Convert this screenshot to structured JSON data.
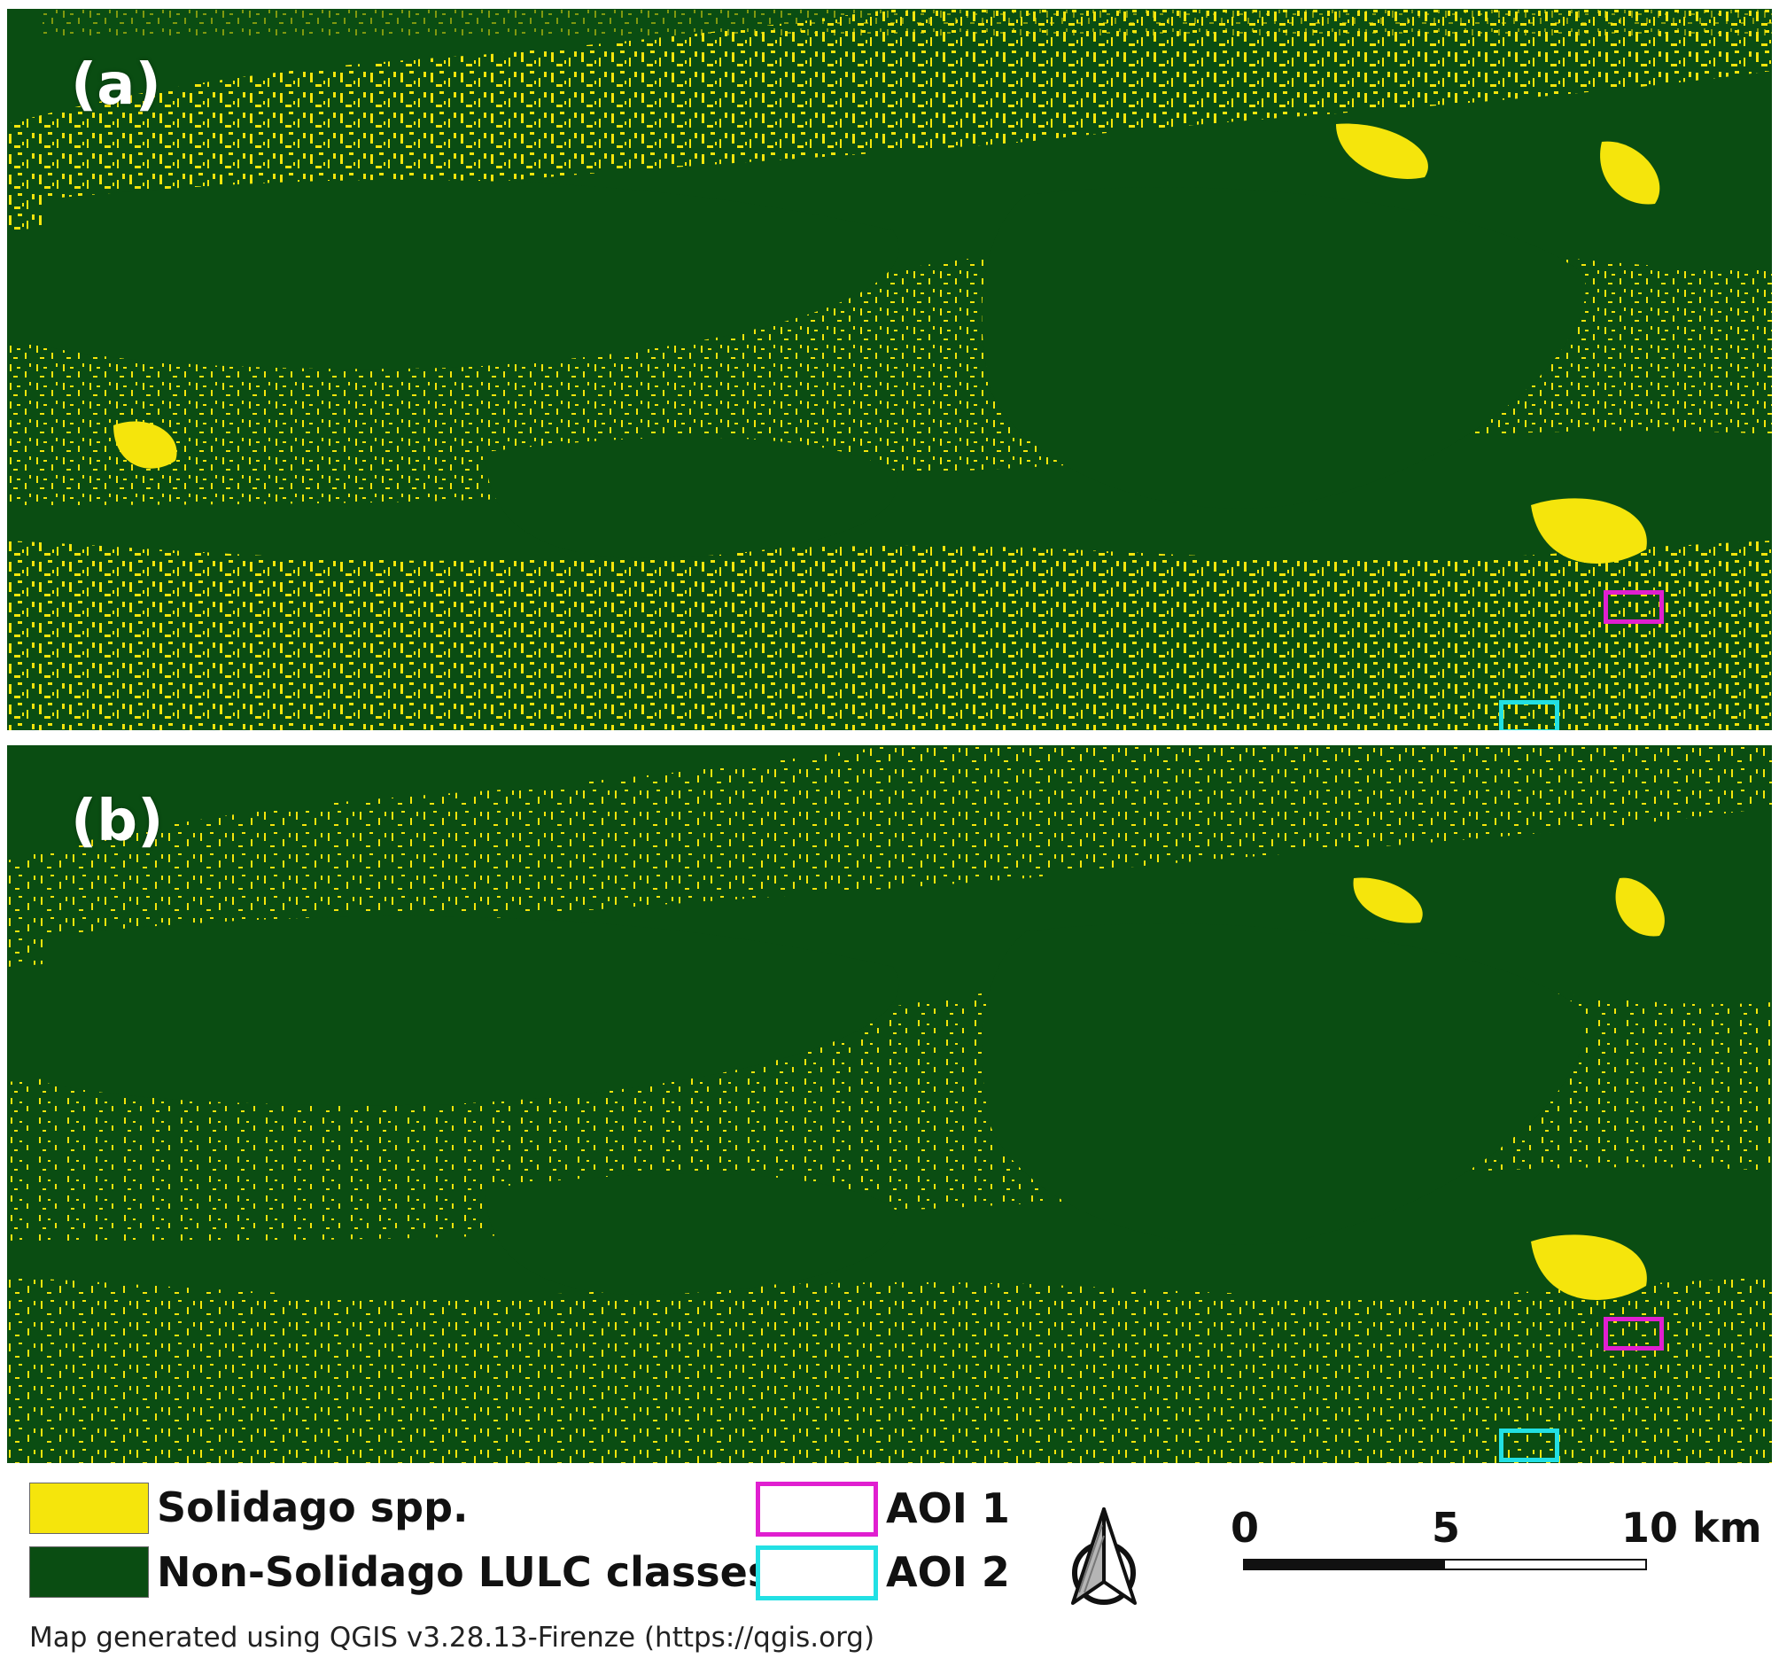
{
  "panels": [
    {
      "label": "(a)"
    },
    {
      "label": "(b)"
    }
  ],
  "legend": {
    "classes": [
      {
        "label": "Solidago spp.",
        "color": "#f5e50c"
      },
      {
        "label": "Non-Solidago LULC classes",
        "color": "#0a4d12"
      }
    ],
    "aois": [
      {
        "label": "AOI 1",
        "color": "#e01fd0"
      },
      {
        "label": "AOI 2",
        "color": "#22e0e4"
      }
    ]
  },
  "north_arrow": {
    "icon": "north-arrow-icon"
  },
  "scale_bar": {
    "labels": [
      "0",
      "5",
      "10 km"
    ]
  },
  "footnote": "Map generated using QGIS v3.28.13-Firenze (https://qgis.org)"
}
